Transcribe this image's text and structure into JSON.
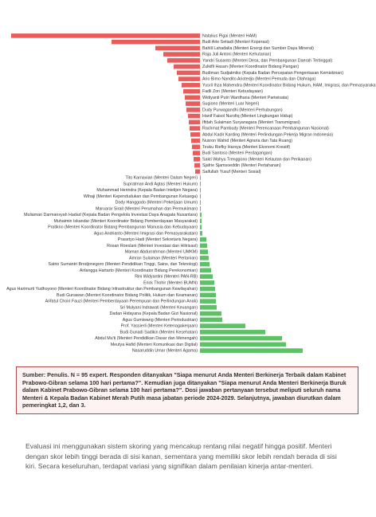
{
  "chart_data": {
    "type": "diverging-bar",
    "categories": [
      "Natalius Pigai (Menteri HAM)",
      "Budi Arie Setiadi (Menteri Koperasi)",
      "Bahlil Lahadalia (Menteri Energi dan Sumber Daya Mineral)",
      "Raja Juli Antoni (Menteri Kehutanan)",
      "Yandri Susanto (Menteri Desa, dan Pembangunan Daerah Tertinggal)",
      "Zulkifli Hasan (Menteri Koordinator Bidang Pangan)",
      "Budiman Sudjatmiko (Kepala Badan Percepatan Pengentasan Kemiskinan)",
      "Ario Bimo Nandito Ariotedjo (Menteri Pemuda dan Olahraga)",
      "Yusril Ihza Mahendra (Menteri Koordinator Bidang Hukum, HAM, Imigrasi, dan Pemasyarakatan)",
      "Fadli Zon (Menteri Kebudayaan)",
      "Widiyanti Putri Wardhana (Menteri Pariwisata)",
      "Sugiono (Menteri Luar Negeri)",
      "Dudy Purwagandhi (Menteri Perhubungan)",
      "Hanif Faisol Nurofiq (Menteri Lingkungan Hidup)",
      "Iftitah Sulaiman Suryanagara (Menteri Transmigrasi)",
      "Rachmat Pambudy (Menteri Perencanaan Pembangunan Nasional)",
      "Abdul Kadir Karding (Menteri Perlindungan Pekerja Migran Indonesia)",
      "Nusron Wahid (Menteri Agraria dan Tata Ruang)",
      "Teuku Riefky Harsya (Menteri Ekonomi Kreatif)",
      "Budi Santoso (Menteri Perdagangan)",
      "Sakti Wahyu Trenggono (Menteri Kelautan dan Perikanan)",
      "Sjafrie Sjamsoeddin (Menteri Pertahanan)",
      "Saifullah Yusuf (Menteri Sosial)",
      "Tito Karnavian (Menteri Dalam Negeri)",
      "Supratman Andi Agtas (Menteri Hukum)",
      "Muhammad Herindra (Kepala Badan Intelijen Negara)",
      "Wihaji (Menteri Kependudukan dan Pembangunan Keluarga)",
      "Dody Hanggodo (Menteri Pekerjaan Umum)",
      "Maruarar Sirait (Menteri Perumahan dan Permukiman)",
      "Muliaman Darmansyah Hadad (Kepala Badan Pengelola Investasi Daya Anagata Nusantara)",
      "Muhaimin Iskandar (Menteri Koordinator Bidang Pemberdayaan Masyarakat)",
      "Pratikno (Menteri Koordinator Bidang Pembangunan Manusia dan Kebudayaan)",
      "Agus Andrianto (Menteri Imigrasi dan Pemasyarakatan)",
      "Prasetyo Hadi (Menteri Sekretaris Negara)",
      "Rosan Roeslani (Menteri Investasi dan Hilirisasi)",
      "Maman Abdurrahman (Menteri UMKM)",
      "Amran Sulaiman (Menteri Pertanian)",
      "Satrio Sumantri Brodjonegoro (Menteri Pendidikan Tinggi, Sains, dan Teknologi)",
      "Airlangga Hartarto (Menteri Koordinator Bidang Perekonomian)",
      "Rini Widyantini (Menteri PAN-RB)",
      "Erick Thohir (Menteri BUMN)",
      "Agus Harimurti Yudhoyono (Menteri Koordinator Bidang Infrastruktur dan Pembangunan Kewilayahan)",
      "Budi Gunawan (Menteri Koordinator Bidang Politik, Hukum dan Keamanan)",
      "Arifatul Choiri Fauzi (Menteri Pemberdayaan Perempuan dan Perlindungan Anak)",
      "Sri Mulyani Indrawati (Menteri Keuangan)",
      "Dadan Hidayana (Kepala Badan Gizi Nasional)",
      "Agus Gumiwang (Menteri Perindustrian)",
      "Prof. Yassierli (Menteri Ketenagakerjaan)",
      "Budi Gunadi Sadikin (Menteri Kesehatan)",
      "Abdul Mu'ti (Menteri Pendidikan Dasar dan Menengah)",
      "Meutya Hafid (Menteri Komunikasi dan Digital)",
      "Nasaruddin Umar (Menteri Agama)"
    ],
    "values": [
      -237,
      -111,
      -56,
      -46,
      -41,
      -33,
      -29,
      -27,
      -23,
      -21,
      -19,
      -18,
      -17,
      -15,
      -14,
      -13,
      -12,
      -11,
      -10,
      -9,
      -8,
      -7,
      -6,
      1,
      1,
      1,
      1,
      1,
      1,
      2,
      2,
      2,
      3,
      8,
      9,
      10,
      11,
      12,
      14,
      16,
      18,
      19,
      20,
      20,
      21,
      27,
      28,
      57,
      82,
      103,
      108,
      129
    ],
    "negative_color": "#e85c5c",
    "positive_color": "#5cc265",
    "xlim": [
      -237,
      221
    ],
    "note": "Sumber: Penulis. N = 95 expert. Responden ditanyakan \"Siapa menurut Anda Menteri Berkinerja Terbaik dalam Kabinet Prabowo-Gibran selama 100 hari pertama?\". Kemudian juga ditanyakan \"Siapa menurut Anda Menteri Berkinerja Buruk dalam Kabinet Prabowo-Gibran selama 100 hari pertama?\". Dosi jawaban pertanyaan tersebut meliputi seluruh nama Menteri & Kepala Badan Kabinet Merah Putih masa jabatan periode 2024-2029. Selanjutnya, jawaban diurutkan dalam pemeringkat 1,2, dan 3.",
    "description": "Evaluasi ini menggunakan sistem skoring yang mencakup rentang nilai negatif hingga positif. Menteri dengan skor lebih tinggi berada di sisi kanan, sementara yang memiliki skor lebih rendah berada di sisi kiri. Secara keseluruhan, terdapat variasi yang signifikan dalam penilaian kinerja antar-menteri."
  }
}
